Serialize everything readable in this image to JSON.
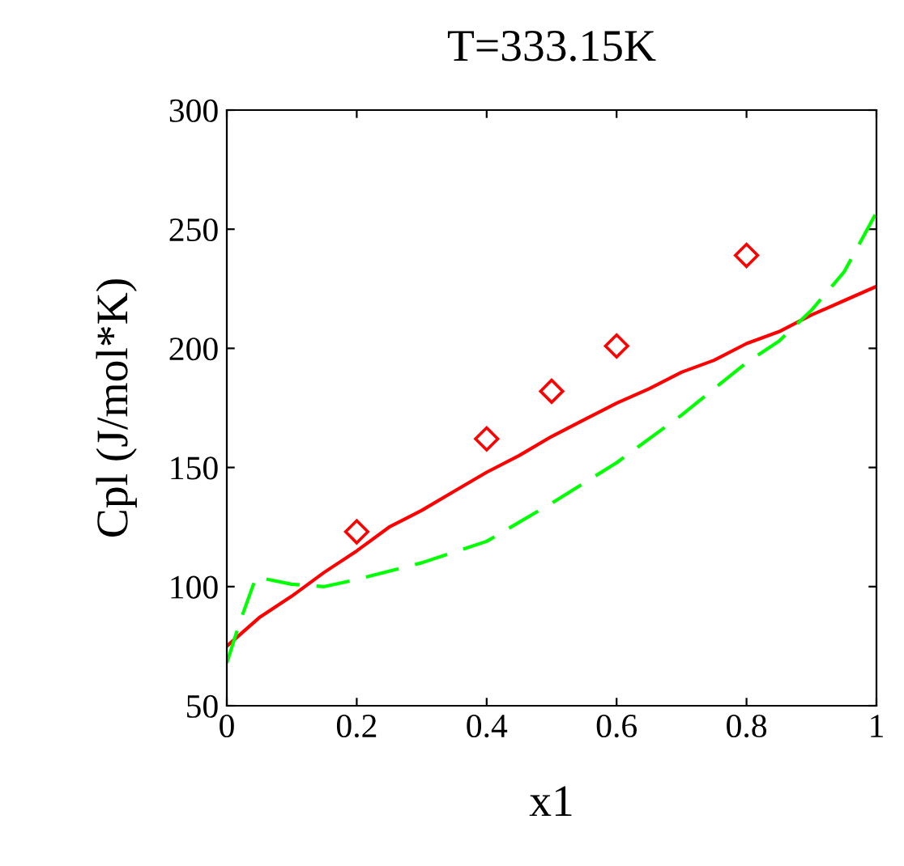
{
  "chart_data": {
    "type": "line",
    "title": "T=333.15K",
    "xlabel": "x1",
    "ylabel": "Cpl (J/mol*K)",
    "xlim": [
      0,
      1
    ],
    "ylim": [
      50,
      300
    ],
    "xticks": [
      0,
      0.2,
      0.4,
      0.6,
      0.8,
      1
    ],
    "yticks": [
      50,
      100,
      150,
      200,
      250,
      300
    ],
    "grid": false,
    "legend": false,
    "series": [
      {
        "color": "#ff0000",
        "line_style": "solid",
        "marker": "none",
        "x": [
          0,
          0.05,
          0.1,
          0.15,
          0.2,
          0.25,
          0.3,
          0.35,
          0.4,
          0.45,
          0.5,
          0.55,
          0.6,
          0.65,
          0.7,
          0.75,
          0.8,
          0.85,
          0.9,
          0.95,
          1.0
        ],
        "values": [
          75,
          87,
          96,
          106,
          115,
          125,
          132,
          140,
          148,
          155,
          163,
          170,
          177,
          183,
          190,
          195,
          202,
          207,
          214,
          220,
          226
        ]
      },
      {
        "color": "#00ff00",
        "line_style": "dashed",
        "marker": "none",
        "x": [
          0,
          0.02,
          0.045,
          0.1,
          0.15,
          0.2,
          0.3,
          0.4,
          0.5,
          0.6,
          0.7,
          0.8,
          0.85,
          0.9,
          0.95,
          1.0
        ],
        "values": [
          68,
          85,
          104,
          101,
          100,
          103,
          110,
          119,
          135,
          152,
          172,
          194,
          203,
          216,
          232,
          257
        ]
      },
      {
        "type": "scatter",
        "color": "#ff0000",
        "marker": "diamond",
        "x": [
          0.2,
          0.4,
          0.5,
          0.6,
          0.8
        ],
        "values": [
          123,
          162,
          182,
          201,
          239
        ]
      }
    ]
  }
}
